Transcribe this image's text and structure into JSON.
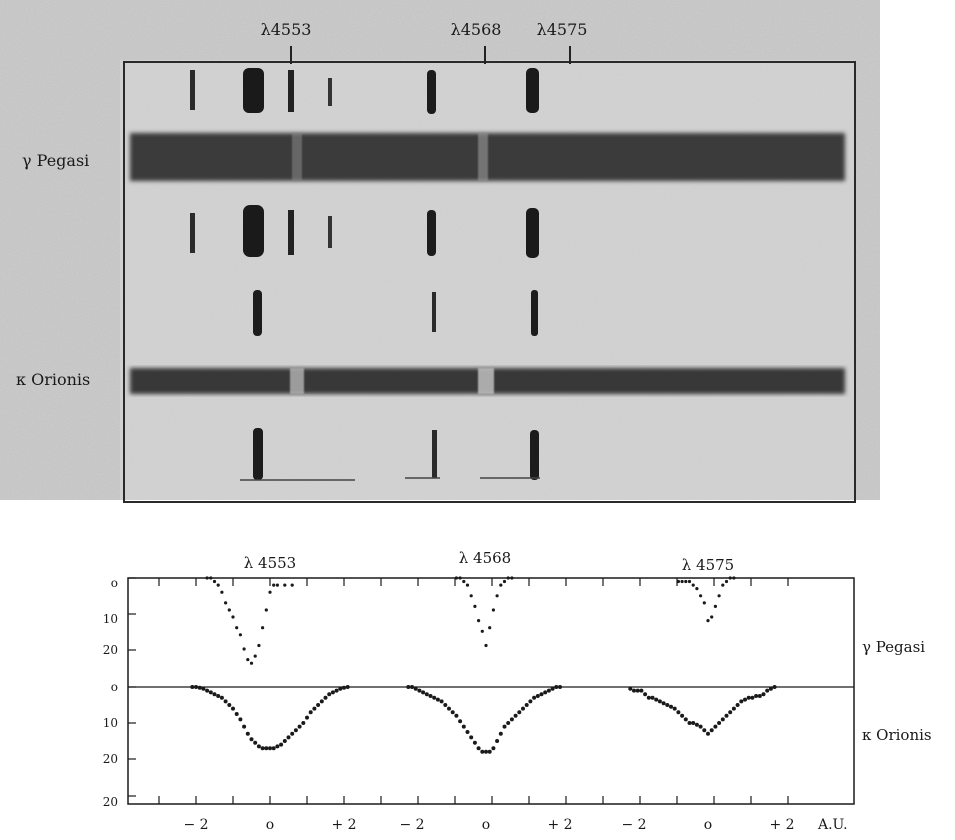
{
  "photo": {
    "upper_labels": [
      "λ4553",
      "λ4568",
      "λ4575"
    ],
    "star_labels": [
      "γ Pegasi",
      "κ Orionis"
    ]
  },
  "chart_data": {
    "type": "scatter",
    "column_labels": [
      "λ 4553",
      "λ 4568",
      "λ 4575"
    ],
    "row_labels": [
      "γ Pegasi",
      "κ Orionis"
    ],
    "x_tick_labels": [
      "− 2",
      "o",
      "+ 2",
      "− 2",
      "o",
      "+ 2",
      "− 2",
      "o",
      "+ 2"
    ],
    "x_unit_label": "A.U.",
    "y_tick_labels": [
      "o",
      "10",
      "20",
      "o",
      "10",
      "20",
      "20"
    ],
    "panels": [
      {
        "star": "γ Pegasi",
        "line": "λ 4553",
        "ylim": [
          0,
          25
        ],
        "points": [
          [
            -1.7,
            0
          ],
          [
            -1.6,
            0
          ],
          [
            -1.5,
            1
          ],
          [
            -1.4,
            2
          ],
          [
            -1.3,
            4
          ],
          [
            -1.2,
            7
          ],
          [
            -1.1,
            9
          ],
          [
            -1.0,
            11
          ],
          [
            -0.9,
            14
          ],
          [
            -0.8,
            16
          ],
          [
            -0.7,
            20
          ],
          [
            -0.6,
            23
          ],
          [
            -0.5,
            24
          ],
          [
            -0.4,
            22
          ],
          [
            -0.3,
            19
          ],
          [
            -0.2,
            14
          ],
          [
            -0.1,
            9
          ],
          [
            0.0,
            4
          ],
          [
            0.1,
            2
          ],
          [
            0.2,
            2
          ],
          [
            0.4,
            2
          ],
          [
            0.6,
            2
          ]
        ]
      },
      {
        "star": "γ Pegasi",
        "line": "λ 4568",
        "ylim": [
          0,
          25
        ],
        "points": [
          [
            -0.8,
            0
          ],
          [
            -0.7,
            0
          ],
          [
            -0.6,
            1
          ],
          [
            -0.5,
            2
          ],
          [
            -0.4,
            5
          ],
          [
            -0.3,
            8
          ],
          [
            -0.2,
            12
          ],
          [
            -0.1,
            15
          ],
          [
            0.0,
            19
          ],
          [
            0.1,
            14
          ],
          [
            0.2,
            9
          ],
          [
            0.3,
            5
          ],
          [
            0.4,
            2
          ],
          [
            0.5,
            1
          ],
          [
            0.6,
            0
          ],
          [
            0.7,
            0
          ]
        ]
      },
      {
        "star": "γ Pegasi",
        "line": "λ 4575",
        "ylim": [
          0,
          25
        ],
        "points": [
          [
            -0.8,
            1
          ],
          [
            -0.7,
            1
          ],
          [
            -0.6,
            1
          ],
          [
            -0.5,
            1
          ],
          [
            -0.4,
            2
          ],
          [
            -0.3,
            3
          ],
          [
            -0.2,
            5
          ],
          [
            -0.1,
            7
          ],
          [
            0.0,
            12
          ],
          [
            0.1,
            11
          ],
          [
            0.2,
            8
          ],
          [
            0.3,
            5
          ],
          [
            0.4,
            2
          ],
          [
            0.5,
            1
          ],
          [
            0.6,
            0
          ],
          [
            0.7,
            0
          ]
        ]
      },
      {
        "star": "κ Orionis",
        "line": "λ 4553",
        "ylim": [
          0,
          20
        ],
        "points": [
          [
            -2.1,
            0
          ],
          [
            -2.0,
            0
          ],
          [
            -1.9,
            0.2
          ],
          [
            -1.8,
            0.5
          ],
          [
            -1.7,
            1
          ],
          [
            -1.6,
            1.5
          ],
          [
            -1.5,
            2
          ],
          [
            -1.4,
            2.5
          ],
          [
            -1.3,
            3
          ],
          [
            -1.2,
            4
          ],
          [
            -1.1,
            5
          ],
          [
            -1.0,
            6
          ],
          [
            -0.9,
            7.5
          ],
          [
            -0.8,
            9
          ],
          [
            -0.7,
            11
          ],
          [
            -0.6,
            13
          ],
          [
            -0.5,
            14.5
          ],
          [
            -0.4,
            15.5
          ],
          [
            -0.3,
            16.5
          ],
          [
            -0.2,
            17
          ],
          [
            -0.1,
            17
          ],
          [
            0.0,
            17
          ],
          [
            0.1,
            17
          ],
          [
            0.2,
            16.5
          ],
          [
            0.3,
            16
          ],
          [
            0.4,
            15
          ],
          [
            0.5,
            14
          ],
          [
            0.6,
            13
          ],
          [
            0.7,
            12
          ],
          [
            0.8,
            11
          ],
          [
            0.9,
            10
          ],
          [
            1.0,
            8.5
          ],
          [
            1.1,
            7
          ],
          [
            1.2,
            6
          ],
          [
            1.3,
            5
          ],
          [
            1.4,
            4
          ],
          [
            1.5,
            3
          ],
          [
            1.6,
            2
          ],
          [
            1.7,
            1.5
          ],
          [
            1.8,
            1
          ],
          [
            1.9,
            0.5
          ],
          [
            2.0,
            0.2
          ],
          [
            2.1,
            0
          ]
        ]
      },
      {
        "star": "κ Orionis",
        "line": "λ 4568",
        "ylim": [
          0,
          20
        ],
        "points": [
          [
            -2.1,
            0
          ],
          [
            -2.0,
            0
          ],
          [
            -1.9,
            0.5
          ],
          [
            -1.8,
            1
          ],
          [
            -1.7,
            1.5
          ],
          [
            -1.6,
            2
          ],
          [
            -1.5,
            2.5
          ],
          [
            -1.4,
            3
          ],
          [
            -1.3,
            3.5
          ],
          [
            -1.2,
            4
          ],
          [
            -1.1,
            5
          ],
          [
            -1.0,
            6
          ],
          [
            -0.9,
            7
          ],
          [
            -0.8,
            8
          ],
          [
            -0.7,
            9.5
          ],
          [
            -0.6,
            11
          ],
          [
            -0.5,
            12.5
          ],
          [
            -0.4,
            14
          ],
          [
            -0.3,
            15.5
          ],
          [
            -0.2,
            17
          ],
          [
            -0.1,
            18
          ],
          [
            0.0,
            18
          ],
          [
            0.1,
            18
          ],
          [
            0.2,
            17
          ],
          [
            0.3,
            15
          ],
          [
            0.4,
            13
          ],
          [
            0.5,
            11
          ],
          [
            0.6,
            10
          ],
          [
            0.7,
            9
          ],
          [
            0.8,
            8
          ],
          [
            0.9,
            7
          ],
          [
            1.0,
            6
          ],
          [
            1.1,
            5
          ],
          [
            1.2,
            4
          ],
          [
            1.3,
            3
          ],
          [
            1.4,
            2.5
          ],
          [
            1.5,
            2
          ],
          [
            1.6,
            1.5
          ],
          [
            1.7,
            1
          ],
          [
            1.8,
            0.5
          ],
          [
            1.9,
            0
          ],
          [
            2.0,
            0
          ]
        ]
      },
      {
        "star": "κ Orionis",
        "line": "λ 4575",
        "ylim": [
          0,
          20
        ],
        "points": [
          [
            -2.1,
            0.5
          ],
          [
            -2.0,
            1
          ],
          [
            -1.9,
            1
          ],
          [
            -1.8,
            1
          ],
          [
            -1.7,
            2
          ],
          [
            -1.6,
            3
          ],
          [
            -1.5,
            3
          ],
          [
            -1.4,
            3.5
          ],
          [
            -1.3,
            4
          ],
          [
            -1.2,
            4.5
          ],
          [
            -1.1,
            5
          ],
          [
            -1.0,
            5.5
          ],
          [
            -0.9,
            6
          ],
          [
            -0.8,
            7
          ],
          [
            -0.7,
            8
          ],
          [
            -0.6,
            9
          ],
          [
            -0.5,
            10
          ],
          [
            -0.4,
            10
          ],
          [
            -0.3,
            10.5
          ],
          [
            -0.2,
            11
          ],
          [
            -0.1,
            12
          ],
          [
            0.0,
            13
          ],
          [
            0.1,
            12
          ],
          [
            0.2,
            11
          ],
          [
            0.3,
            10
          ],
          [
            0.4,
            9
          ],
          [
            0.5,
            8
          ],
          [
            0.6,
            7
          ],
          [
            0.7,
            6
          ],
          [
            0.8,
            5
          ],
          [
            0.9,
            4
          ],
          [
            1.0,
            3.5
          ],
          [
            1.1,
            3
          ],
          [
            1.2,
            3
          ],
          [
            1.3,
            2.5
          ],
          [
            1.4,
            2.5
          ],
          [
            1.5,
            2
          ],
          [
            1.6,
            1
          ],
          [
            1.7,
            0.5
          ],
          [
            1.8,
            0
          ]
        ]
      }
    ]
  }
}
